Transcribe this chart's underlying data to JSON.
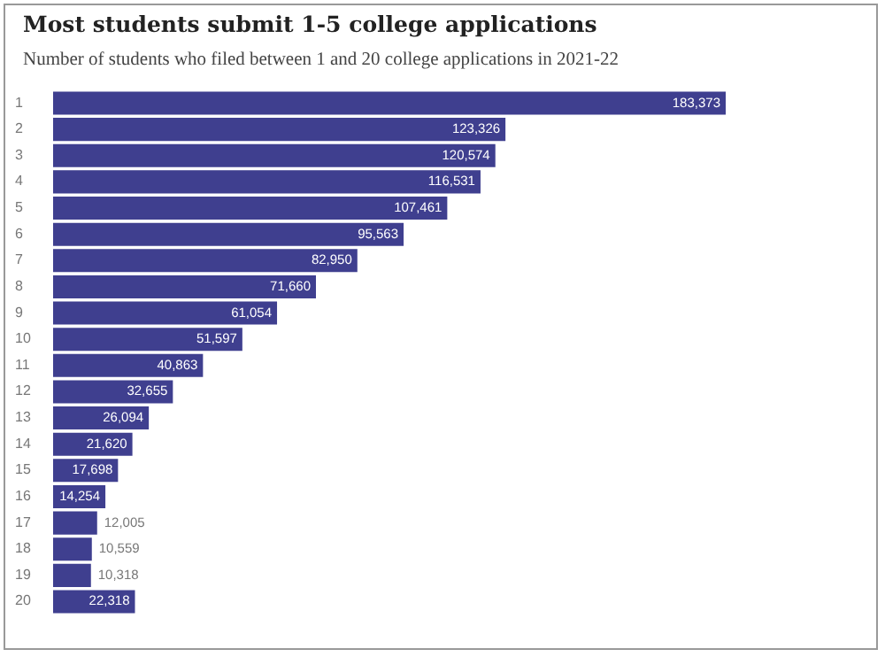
{
  "chart_data": {
    "type": "bar",
    "orientation": "horizontal",
    "title": "Most students submit 1-5 college applications",
    "subtitle": "Number of students who filed between 1 and 20 college applications in 2021-22",
    "categories": [
      "1",
      "2",
      "3",
      "4",
      "5",
      "6",
      "7",
      "8",
      "9",
      "10",
      "11",
      "12",
      "13",
      "14",
      "15",
      "16",
      "17",
      "18",
      "19",
      "20"
    ],
    "values": [
      183373,
      123326,
      120574,
      116531,
      107461,
      95563,
      82950,
      71660,
      61054,
      51597,
      40863,
      32655,
      26094,
      21620,
      17698,
      14254,
      12005,
      10559,
      10318,
      22318
    ],
    "value_labels": [
      "183,373",
      "123,326",
      "120,574",
      "116,531",
      "107,461",
      "95,563",
      "82,950",
      "71,660",
      "61,054",
      "51,597",
      "40,863",
      "32,655",
      "26,094",
      "21,620",
      "17,698",
      "14,254",
      "12,005",
      "10,559",
      "10,318",
      "22,318"
    ],
    "color": "#3f3f8f"
  }
}
